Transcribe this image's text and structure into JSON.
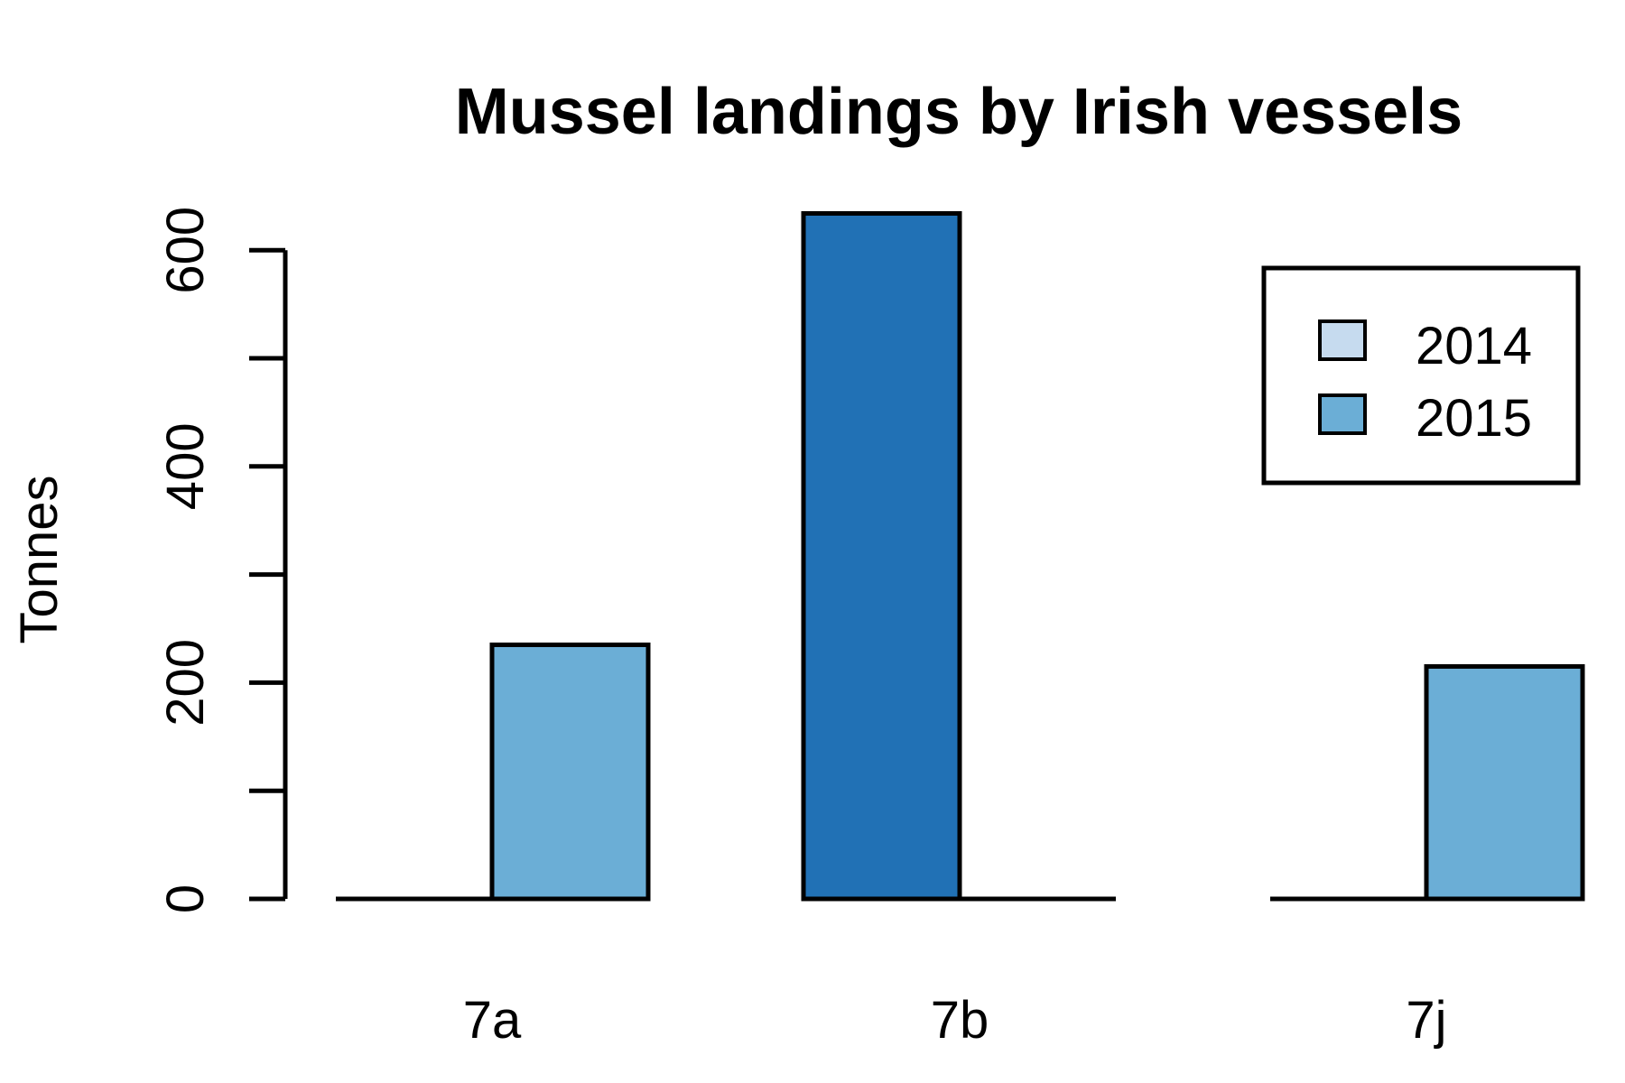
{
  "chart_data": {
    "type": "bar",
    "title": "Mussel landings by Irish vessels",
    "ylabel": "Tonnes",
    "xlabel": "",
    "categories": [
      "7a",
      "7b",
      "7j"
    ],
    "series": [
      {
        "name": "2014",
        "values": [
          0,
          634,
          0
        ],
        "color": "#c6dbef"
      },
      {
        "name": "2015",
        "values": [
          235,
          0,
          215
        ],
        "color": "#6baed6"
      }
    ],
    "bar_colors": [
      [
        "#c6dbef",
        "#6baed6"
      ],
      [
        "#2171b5",
        "#6baed6"
      ],
      [
        "#c6dbef",
        "#6baed6"
      ]
    ],
    "ylim": [
      0,
      640
    ],
    "yticks": [
      0,
      100,
      200,
      300,
      400,
      500,
      600
    ],
    "ytick_labels": [
      "0",
      "",
      "200",
      "",
      "400",
      "",
      "600"
    ],
    "legend_position": "top-right",
    "grid": false
  }
}
